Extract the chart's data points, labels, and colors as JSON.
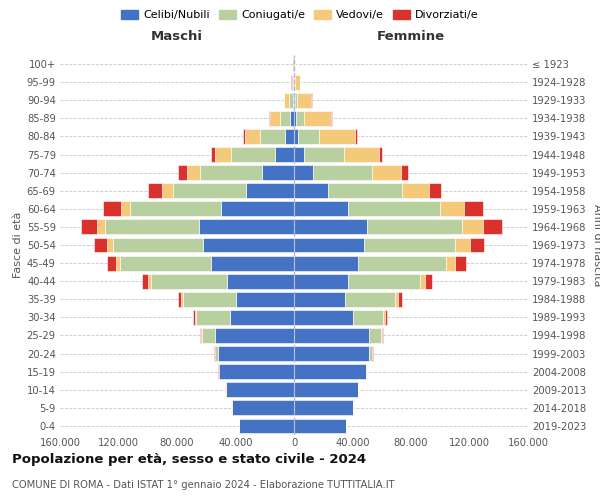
{
  "age_groups": [
    "0-4",
    "5-9",
    "10-14",
    "15-19",
    "20-24",
    "25-29",
    "30-34",
    "35-39",
    "40-44",
    "45-49",
    "50-54",
    "55-59",
    "60-64",
    "65-69",
    "70-74",
    "75-79",
    "80-84",
    "85-89",
    "90-94",
    "95-99",
    "100+"
  ],
  "birth_years_right": [
    "2019-2023",
    "2014-2018",
    "2009-2013",
    "2004-2008",
    "1999-2003",
    "1994-1998",
    "1989-1993",
    "1984-1988",
    "1979-1983",
    "1974-1978",
    "1969-1973",
    "1964-1968",
    "1959-1963",
    "1954-1958",
    "1949-1953",
    "1944-1948",
    "1939-1943",
    "1934-1938",
    "1929-1933",
    "1924-1928",
    "≤ 1923"
  ],
  "colors": {
    "celibi": "#4472c4",
    "coniugati": "#b8cfa0",
    "vedovi": "#f5c97a",
    "divorziati": "#d9312b"
  },
  "maschi": {
    "celibi": [
      37500,
      42500,
      46500,
      51000,
      52000,
      54000,
      44000,
      40000,
      46000,
      57000,
      62000,
      65000,
      50000,
      33000,
      22000,
      13000,
      6000,
      2500,
      900,
      250,
      80
    ],
    "coniugati": [
      100,
      200,
      300,
      500,
      2000,
      9000,
      23000,
      36000,
      52000,
      62000,
      62000,
      64000,
      62000,
      50000,
      42000,
      30000,
      17000,
      7000,
      2200,
      450,
      60
    ],
    "vedovi": [
      30,
      50,
      60,
      80,
      150,
      350,
      700,
      1000,
      1800,
      2800,
      4200,
      5500,
      6500,
      7500,
      9500,
      11000,
      10500,
      7000,
      3500,
      1000,
      200
    ],
    "divorziati": [
      80,
      100,
      120,
      150,
      350,
      700,
      1300,
      2200,
      3800,
      6000,
      8500,
      11000,
      12000,
      9000,
      5500,
      2800,
      1100,
      450,
      120,
      35,
      10
    ]
  },
  "femmine": {
    "celibi": [
      35500,
      40000,
      43500,
      49000,
      51000,
      51000,
      40000,
      35000,
      37000,
      44000,
      48000,
      50000,
      37000,
      23000,
      13000,
      7000,
      3000,
      1100,
      350,
      100,
      30
    ],
    "coniugati": [
      100,
      200,
      300,
      500,
      2000,
      8500,
      21000,
      34000,
      49000,
      60000,
      62000,
      65000,
      63000,
      51000,
      40000,
      27000,
      14000,
      5500,
      1600,
      280,
      35
    ],
    "vedovi": [
      30,
      50,
      70,
      100,
      250,
      550,
      1100,
      1900,
      3500,
      6000,
      10000,
      14000,
      16000,
      18000,
      20000,
      24000,
      25000,
      19000,
      10000,
      3500,
      800
    ],
    "divorziati": [
      80,
      100,
      150,
      200,
      450,
      800,
      1600,
      2800,
      4800,
      7500,
      10000,
      13000,
      13000,
      8500,
      4800,
      2200,
      750,
      270,
      90,
      28,
      10
    ]
  },
  "title": "Popolazione per età, sesso e stato civile - 2024",
  "subtitle": "COMUNE DI ROMA - Dati ISTAT 1° gennaio 2024 - Elaborazione TUTTITALIA.IT",
  "xlabel_left": "Maschi",
  "xlabel_right": "Femmine",
  "ylabel_left": "Fasce di età",
  "ylabel_right": "Anni di nascita",
  "xlim": 160000,
  "legend_labels": [
    "Celibi/Nubili",
    "Coniugati/e",
    "Vedovi/e",
    "Divorziati/e"
  ],
  "bg_color": "#ffffff",
  "grid_color": "#c8c8c8"
}
